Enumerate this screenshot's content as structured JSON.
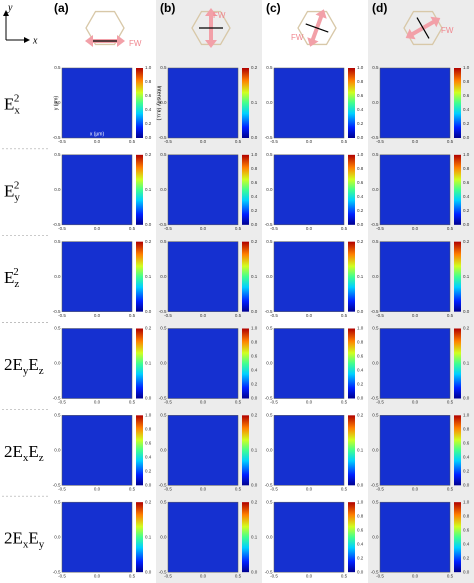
{
  "axes_icon": {
    "y": "y",
    "x": "x"
  },
  "columns": [
    {
      "label": "(a)",
      "arrow_label": "FW"
    },
    {
      "label": "(b)",
      "arrow_label": "FW"
    },
    {
      "label": "(c)",
      "arrow_label": "FW"
    },
    {
      "label": "(d)",
      "arrow_label": "FW"
    }
  ],
  "first_panel": {
    "y_label": "y (μm)",
    "x_label": "x (μm)",
    "cbar_label": "Intensity (a.u.)"
  },
  "axis_ticks": [
    "-0.5",
    "0.0",
    "0.5"
  ],
  "rows": [
    {
      "label": [
        {
          "text": "E",
          "pos": "base"
        },
        {
          "text": "x",
          "pos": "sub"
        },
        {
          "text": "2",
          "pos": "sup"
        }
      ],
      "panels": [
        {
          "cbar_ticks": [
            "0.0",
            "0.2",
            "0.4",
            "0.6",
            "0.8",
            "1.0"
          ]
        },
        {
          "cbar_ticks": [
            "0.0",
            "0.1",
            "0.2"
          ]
        },
        {
          "cbar_ticks": [
            "0.0",
            "0.2",
            "0.4",
            "0.6",
            "0.8",
            "1.0"
          ]
        },
        {
          "cbar_ticks": [
            "0.0",
            "0.2",
            "0.4",
            "0.6",
            "0.8",
            "1.0"
          ]
        }
      ]
    },
    {
      "label": [
        {
          "text": "E",
          "pos": "base"
        },
        {
          "text": "y",
          "pos": "sub"
        },
        {
          "text": "2",
          "pos": "sup"
        }
      ],
      "panels": [
        {
          "cbar_ticks": [
            "0.0",
            "0.1",
            "0.2"
          ]
        },
        {
          "cbar_ticks": [
            "0.0",
            "0.2",
            "0.4",
            "0.6",
            "0.8",
            "1.0"
          ]
        },
        {
          "cbar_ticks": [
            "0.0",
            "0.2",
            "0.4",
            "0.6",
            "0.8",
            "1.0"
          ]
        },
        {
          "cbar_ticks": [
            "0.0",
            "0.2",
            "0.4",
            "0.6",
            "0.8",
            "1.0"
          ]
        }
      ]
    },
    {
      "label": [
        {
          "text": "E",
          "pos": "base"
        },
        {
          "text": "z",
          "pos": "sub"
        },
        {
          "text": "2",
          "pos": "sup"
        }
      ],
      "panels": [
        {
          "cbar_ticks": [
            "0.0",
            "0.1",
            "0.2"
          ]
        },
        {
          "cbar_ticks": [
            "0.0",
            "0.1",
            "0.2"
          ]
        },
        {
          "cbar_ticks": [
            "0.0",
            "0.1",
            "0.2"
          ]
        },
        {
          "cbar_ticks": [
            "0.0",
            "0.1",
            "0.2"
          ]
        }
      ]
    },
    {
      "label": [
        {
          "text": "2E",
          "pos": "base"
        },
        {
          "text": "y",
          "pos": "sub"
        },
        {
          "text": "E",
          "pos": "base"
        },
        {
          "text": "z",
          "pos": "sub"
        }
      ],
      "panels": [
        {
          "cbar_ticks": [
            "0.0",
            "0.1",
            "0.2"
          ]
        },
        {
          "cbar_ticks": [
            "0.0",
            "0.2",
            "0.4",
            "0.6",
            "0.8",
            "1.0"
          ]
        },
        {
          "cbar_ticks": [
            "0.0",
            "0.2",
            "0.4",
            "0.6",
            "0.8",
            "1.0"
          ]
        },
        {
          "cbar_ticks": [
            "0.0",
            "0.1",
            "0.2"
          ]
        }
      ]
    },
    {
      "label": [
        {
          "text": "2E",
          "pos": "base"
        },
        {
          "text": "x",
          "pos": "sub"
        },
        {
          "text": "E",
          "pos": "base"
        },
        {
          "text": "z",
          "pos": "sub"
        }
      ],
      "panels": [
        {
          "cbar_ticks": [
            "0.0",
            "0.2",
            "0.4",
            "0.6",
            "0.8",
            "1.0"
          ]
        },
        {
          "cbar_ticks": [
            "0.0",
            "0.1",
            "0.2"
          ]
        },
        {
          "cbar_ticks": [
            "0.0",
            "0.1",
            "0.2"
          ]
        },
        {
          "cbar_ticks": [
            "0.0",
            "0.2",
            "0.4",
            "0.6",
            "0.8",
            "1.0"
          ]
        }
      ]
    },
    {
      "label": [
        {
          "text": "2E",
          "pos": "base"
        },
        {
          "text": "x",
          "pos": "sub"
        },
        {
          "text": "E",
          "pos": "base"
        },
        {
          "text": "y",
          "pos": "sub"
        }
      ],
      "panels": [
        {
          "cbar_ticks": [
            "0.0",
            "0.1",
            "0.2"
          ]
        },
        {
          "cbar_ticks": [
            "0.0",
            "0.1",
            "0.2"
          ]
        },
        {
          "cbar_ticks": [
            "0.0",
            "0.2",
            "0.4",
            "0.6",
            "0.8",
            "1.0"
          ]
        },
        {
          "cbar_ticks": [
            "0.0",
            "0.2",
            "0.4",
            "0.6",
            "0.8",
            "1.0"
          ]
        }
      ]
    }
  ]
}
